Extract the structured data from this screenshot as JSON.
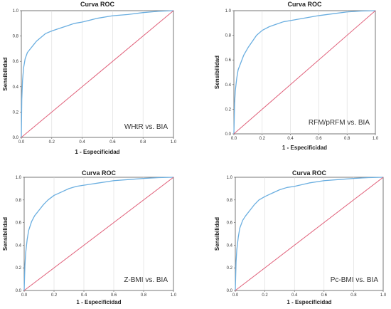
{
  "chart_data": [
    {
      "type": "line",
      "title": "Curva ROC",
      "xlabel": "1 - Especificidad",
      "ylabel": "Sensibilidad",
      "annotation": "WHtR vs. BIA",
      "xlim": [
        0,
        1
      ],
      "ylim": [
        0,
        1
      ],
      "x_ticks": [
        "0.0",
        "0.2",
        "0.4",
        "0.6",
        "0.8",
        "1.0"
      ],
      "y_ticks": [
        "0.0",
        "0.2",
        "0.4",
        "0.6",
        "0.8",
        "1.0"
      ],
      "series": [
        {
          "color": "#6aaee0",
          "x": [
            0,
            0.003,
            0.008,
            0.015,
            0.025,
            0.04,
            0.06,
            0.08,
            0.1,
            0.13,
            0.16,
            0.2,
            0.25,
            0.3,
            0.35,
            0.4,
            0.5,
            0.6,
            0.7,
            0.8,
            0.9,
            1.0
          ],
          "y": [
            0,
            0.3,
            0.45,
            0.55,
            0.62,
            0.67,
            0.7,
            0.73,
            0.76,
            0.79,
            0.82,
            0.84,
            0.86,
            0.88,
            0.9,
            0.91,
            0.94,
            0.96,
            0.97,
            0.985,
            0.995,
            1.0
          ]
        },
        {
          "color": "#e0607a",
          "x": [
            0,
            1
          ],
          "y": [
            0,
            1
          ]
        }
      ]
    },
    {
      "type": "line",
      "title": "Curva ROC",
      "xlabel": "1 - Especificidad",
      "ylabel": "Sensibilidad",
      "annotation": "RFM/pRFM vs. BIA",
      "xlim": [
        0,
        1
      ],
      "ylim": [
        0,
        1
      ],
      "x_ticks": [
        "0.0",
        "0.2",
        "0.4",
        "0.6",
        "0.8",
        "1.0"
      ],
      "y_ticks": [
        "0.0",
        "0.2",
        "0.4",
        "0.6",
        "0.8",
        "1.0"
      ],
      "series": [
        {
          "color": "#6aaee0",
          "x": [
            0,
            0.005,
            0.01,
            0.02,
            0.03,
            0.05,
            0.07,
            0.1,
            0.13,
            0.16,
            0.2,
            0.25,
            0.3,
            0.35,
            0.4,
            0.5,
            0.6,
            0.7,
            0.8,
            0.9,
            1.0
          ],
          "y": [
            0,
            0.25,
            0.35,
            0.45,
            0.52,
            0.58,
            0.64,
            0.7,
            0.75,
            0.8,
            0.84,
            0.87,
            0.89,
            0.91,
            0.92,
            0.94,
            0.96,
            0.975,
            0.99,
            0.997,
            1.0
          ]
        },
        {
          "color": "#e0607a",
          "x": [
            0,
            1
          ],
          "y": [
            0,
            1
          ]
        }
      ]
    },
    {
      "type": "line",
      "title": "Curva ROC",
      "xlabel": "1 - Especificidad",
      "ylabel": "Sensibilidad",
      "annotation": "Z-BMI vs. BIA",
      "xlim": [
        0,
        1
      ],
      "ylim": [
        0,
        1
      ],
      "x_ticks": [
        "0.0",
        "0.2",
        "0.4",
        "0.6",
        "0.8",
        "1.0"
      ],
      "y_ticks": [
        "0.0",
        "0.2",
        "0.4",
        "0.6",
        "0.8",
        "1.0"
      ],
      "series": [
        {
          "color": "#6aaee0",
          "x": [
            0,
            0.005,
            0.01,
            0.02,
            0.03,
            0.05,
            0.07,
            0.1,
            0.13,
            0.16,
            0.2,
            0.25,
            0.3,
            0.35,
            0.4,
            0.5,
            0.6,
            0.7,
            0.8,
            0.9,
            1.0
          ],
          "y": [
            0,
            0.22,
            0.33,
            0.45,
            0.53,
            0.61,
            0.66,
            0.71,
            0.76,
            0.8,
            0.84,
            0.87,
            0.9,
            0.92,
            0.93,
            0.95,
            0.97,
            0.98,
            0.99,
            0.997,
            1.0
          ]
        },
        {
          "color": "#e0607a",
          "x": [
            0,
            1
          ],
          "y": [
            0,
            1
          ]
        }
      ]
    },
    {
      "type": "line",
      "title": "Curva ROC",
      "xlabel": "1 - Especificidad",
      "ylabel": "Sensibilidad",
      "annotation": "Pc-BMI vs. BIA",
      "xlim": [
        0,
        1
      ],
      "ylim": [
        0,
        1
      ],
      "x_ticks": [
        "0.0",
        "0.2",
        "0.4",
        "0.6",
        "0.8",
        "1.0"
      ],
      "y_ticks": [
        "0.0",
        "0.2",
        "0.4",
        "0.6",
        "0.8",
        "1.0"
      ],
      "series": [
        {
          "color": "#6aaee0",
          "x": [
            0,
            0.005,
            0.01,
            0.02,
            0.03,
            0.05,
            0.07,
            0.1,
            0.13,
            0.16,
            0.2,
            0.25,
            0.3,
            0.35,
            0.4,
            0.5,
            0.6,
            0.7,
            0.8,
            0.9,
            1.0
          ],
          "y": [
            0,
            0.25,
            0.36,
            0.47,
            0.55,
            0.62,
            0.66,
            0.71,
            0.76,
            0.8,
            0.83,
            0.86,
            0.89,
            0.91,
            0.92,
            0.95,
            0.97,
            0.98,
            0.99,
            0.997,
            1.0
          ]
        },
        {
          "color": "#e0607a",
          "x": [
            0,
            1
          ],
          "y": [
            0,
            1
          ]
        }
      ]
    }
  ]
}
